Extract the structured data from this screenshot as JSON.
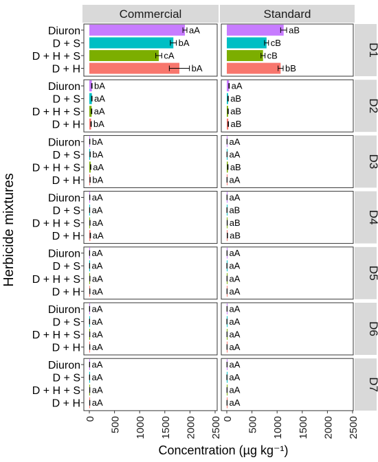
{
  "chart_data": {
    "type": "bar",
    "orientation": "horizontal",
    "xlabel": "Concentration (µg kg⁻¹)",
    "ylabel": "Herbicide mixtures",
    "xlim": [
      0,
      2500
    ],
    "x_ticks": [
      "0",
      "500",
      "1000",
      "1500",
      "2000",
      "2500"
    ],
    "x_tick_values": [
      0,
      500,
      1000,
      1500,
      2000,
      2500
    ],
    "columns": [
      "Commercial",
      "Standard"
    ],
    "rows": [
      "D1",
      "D2",
      "D3",
      "D4",
      "D5",
      "D6",
      "D7"
    ],
    "categories": [
      "Diuron",
      "D + S",
      "D + H + S",
      "D + H"
    ],
    "colors": {
      "Diuron": "#c77cff",
      "D + S": "#00bfc4",
      "D + H + S": "#7cae00",
      "D + H": "#f8766d"
    },
    "grid": false,
    "legend": "none",
    "panels": [
      {
        "row": "D1",
        "column": "Commercial",
        "values": [
          1900,
          1670,
          1380,
          1790
        ],
        "errors": [
          40,
          60,
          60,
          200
        ],
        "labels": [
          "aA",
          "bA",
          "cA",
          "bA"
        ]
      },
      {
        "row": "D1",
        "column": "Standard",
        "values": [
          1130,
          790,
          720,
          1070
        ],
        "errors": [
          60,
          40,
          40,
          50
        ],
        "labels": [
          "aB",
          "cB",
          "cB",
          "bB"
        ]
      },
      {
        "row": "D2",
        "column": "Commercial",
        "values": [
          50,
          50,
          45,
          35
        ],
        "errors": [
          5,
          5,
          5,
          5
        ],
        "labels": [
          "bA",
          "aA",
          "aA",
          "bA"
        ]
      },
      {
        "row": "D2",
        "column": "Standard",
        "values": [
          45,
          25,
          25,
          30
        ],
        "errors": [
          5,
          5,
          5,
          5
        ],
        "labels": [
          "aA",
          "aB",
          "aB",
          "aB"
        ]
      },
      {
        "row": "D3",
        "column": "Commercial",
        "values": [
          8,
          15,
          25,
          15
        ],
        "errors": [
          3,
          3,
          5,
          3
        ],
        "labels": [
          "bA",
          "bA",
          "aA",
          "bA"
        ]
      },
      {
        "row": "D3",
        "column": "Standard",
        "values": [
          5,
          5,
          20,
          5
        ],
        "errors": [
          2,
          2,
          5,
          2
        ],
        "labels": [
          "aA",
          "aA",
          "aB",
          "aA"
        ]
      },
      {
        "row": "D4",
        "column": "Commercial",
        "values": [
          8,
          6,
          12,
          20
        ],
        "errors": [
          2,
          2,
          3,
          4
        ],
        "labels": [
          "aA",
          "aA",
          "aA",
          "aA"
        ]
      },
      {
        "row": "D4",
        "column": "Standard",
        "values": [
          5,
          4,
          8,
          12
        ],
        "errors": [
          2,
          2,
          2,
          3
        ],
        "labels": [
          "aA",
          "aB",
          "aB",
          "aB"
        ]
      },
      {
        "row": "D5",
        "column": "Commercial",
        "values": [
          5,
          5,
          10,
          10
        ],
        "errors": [
          2,
          2,
          2,
          2
        ],
        "labels": [
          "aA",
          "aA",
          "aA",
          "aA"
        ]
      },
      {
        "row": "D5",
        "column": "Standard",
        "values": [
          5,
          3,
          5,
          5
        ],
        "errors": [
          2,
          2,
          2,
          2
        ],
        "labels": [
          "aA",
          "aA",
          "aA",
          "aA"
        ]
      },
      {
        "row": "D6",
        "column": "Commercial",
        "values": [
          5,
          5,
          8,
          8
        ],
        "errors": [
          2,
          2,
          2,
          2
        ],
        "labels": [
          "aA",
          "aA",
          "aA",
          "aA"
        ]
      },
      {
        "row": "D6",
        "column": "Standard",
        "values": [
          5,
          3,
          5,
          5
        ],
        "errors": [
          2,
          2,
          2,
          2
        ],
        "labels": [
          "aA",
          "aA",
          "aA",
          "aA"
        ]
      },
      {
        "row": "D7",
        "column": "Commercial",
        "values": [
          5,
          5,
          8,
          8
        ],
        "errors": [
          2,
          2,
          2,
          2
        ],
        "labels": [
          "aA",
          "aA",
          "aA",
          "aA"
        ]
      },
      {
        "row": "D7",
        "column": "Standard",
        "values": [
          5,
          3,
          5,
          5
        ],
        "errors": [
          2,
          2,
          2,
          2
        ],
        "labels": [
          "aA",
          "aA",
          "aA",
          "aA"
        ]
      }
    ]
  }
}
